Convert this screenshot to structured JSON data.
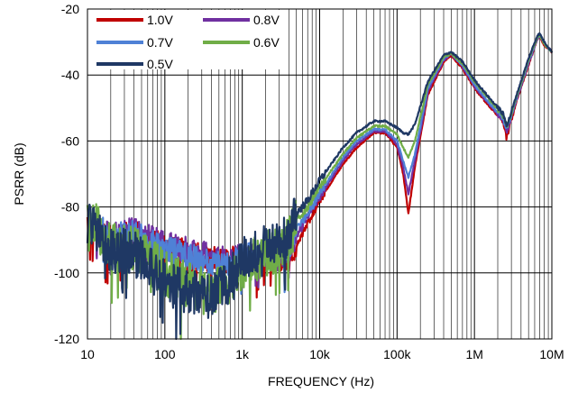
{
  "chart_data": {
    "type": "line",
    "title": "",
    "xlabel": "FREQUENCY (Hz)",
    "ylabel": "PSRR (dB)",
    "xscale": "log",
    "xlim": [
      10,
      10000000
    ],
    "ylim": [
      -120,
      -20
    ],
    "grid": true,
    "legend_position": "top-left",
    "x_tick_values": [
      10,
      100,
      1000,
      10000,
      100000,
      1000000,
      10000000
    ],
    "x_tick_labels": [
      "10",
      "100",
      "1k",
      "10k",
      "100k",
      "1M",
      "10M"
    ],
    "y_tick_values": [
      -20,
      -40,
      -60,
      -80,
      -100,
      -120
    ],
    "y_tick_labels": [
      "-20",
      "-40",
      "-60",
      "-80",
      "-100",
      "-120"
    ],
    "series": [
      {
        "name": "1.0V",
        "color": "#c00000",
        "x": [
          10,
          20,
          40,
          60,
          100,
          200,
          400,
          700,
          1000,
          2000,
          3000,
          4000,
          5000,
          7000,
          10000,
          20000,
          30000,
          50000,
          70000,
          100000,
          120000,
          140000,
          170000,
          250000,
          400000,
          500000,
          700000,
          1000000,
          1500000,
          2300000,
          2600000,
          2700000,
          2800000,
          3500000,
          5000000,
          6500000,
          7000000,
          8000000,
          10000000
        ],
        "y": [
          -85,
          -90,
          -88,
          -90,
          -92,
          -94,
          -96,
          -96,
          -95,
          -95,
          -96,
          -96,
          -92,
          -85,
          -78,
          -67,
          -62,
          -57.5,
          -57.5,
          -62,
          -70,
          -82,
          -68,
          -46,
          -36,
          -34,
          -38,
          -44,
          -49,
          -54,
          -59,
          -58,
          -56,
          -48,
          -37,
          -29,
          -28.5,
          -31,
          -33
        ]
      },
      {
        "name": "0.8V",
        "color": "#7030a0",
        "x": [
          10,
          20,
          40,
          60,
          100,
          200,
          400,
          700,
          1000,
          2000,
          3000,
          4000,
          5000,
          7000,
          10000,
          20000,
          30000,
          50000,
          70000,
          100000,
          120000,
          140000,
          170000,
          250000,
          400000,
          500000,
          700000,
          1000000,
          1500000,
          2300000,
          2600000,
          2700000,
          2800000,
          3500000,
          5000000,
          6500000,
          7000000,
          8000000,
          10000000
        ],
        "y": [
          -84,
          -89,
          -87,
          -89,
          -91,
          -93,
          -95,
          -96,
          -95,
          -95,
          -96,
          -94,
          -89,
          -83,
          -77,
          -66,
          -61,
          -57,
          -57,
          -61,
          -68,
          -76,
          -66,
          -45,
          -35.5,
          -33.5,
          -37.5,
          -43.5,
          -48.5,
          -53.5,
          -57,
          -56.5,
          -55,
          -47.5,
          -36.5,
          -29,
          -28,
          -30.5,
          -33
        ]
      },
      {
        "name": "0.7V",
        "color": "#4f81d6",
        "x": [
          10,
          20,
          40,
          60,
          100,
          200,
          400,
          700,
          1000,
          2000,
          3000,
          4000,
          5000,
          7000,
          10000,
          20000,
          30000,
          50000,
          70000,
          100000,
          120000,
          140000,
          170000,
          250000,
          400000,
          500000,
          700000,
          1000000,
          1500000,
          2300000,
          2600000,
          2700000,
          2800000,
          3500000,
          5000000,
          6500000,
          7000000,
          8000000,
          10000000
        ],
        "y": [
          -83,
          -89,
          -88,
          -90,
          -92,
          -95,
          -97,
          -97,
          -95,
          -94,
          -94,
          -92,
          -87,
          -82,
          -76,
          -65,
          -60,
          -56.5,
          -56.5,
          -60,
          -66,
          -71,
          -64,
          -44,
          -35,
          -33.5,
          -37,
          -43,
          -48,
          -53,
          -56,
          -55.5,
          -54.5,
          -47,
          -36,
          -28.5,
          -28,
          -30.5,
          -33
        ]
      },
      {
        "name": "0.6V",
        "color": "#70ad47",
        "x": [
          10,
          20,
          40,
          60,
          100,
          200,
          400,
          700,
          1000,
          2000,
          3000,
          4000,
          5000,
          7000,
          10000,
          20000,
          30000,
          50000,
          70000,
          100000,
          120000,
          140000,
          170000,
          250000,
          400000,
          500000,
          700000,
          1000000,
          1500000,
          2300000,
          2600000,
          2700000,
          2800000,
          3500000,
          5000000,
          6500000,
          7000000,
          8000000,
          10000000
        ],
        "y": [
          -82,
          -92,
          -92,
          -95,
          -100,
          -104,
          -106,
          -103,
          -98,
          -94,
          -93,
          -90,
          -84,
          -80,
          -74,
          -64,
          -59,
          -55.5,
          -55.5,
          -58,
          -62,
          -65,
          -60,
          -43,
          -34.5,
          -33.5,
          -36.5,
          -42,
          -47,
          -52,
          -55,
          -55,
          -54,
          -46.5,
          -35.5,
          -28.5,
          -28,
          -30.5,
          -33
        ]
      },
      {
        "name": "0.5V",
        "color": "#1f3864",
        "x": [
          10,
          20,
          40,
          60,
          100,
          200,
          400,
          700,
          1000,
          2000,
          3000,
          4000,
          5000,
          7000,
          10000,
          20000,
          30000,
          50000,
          70000,
          100000,
          120000,
          140000,
          170000,
          250000,
          400000,
          500000,
          700000,
          1000000,
          1500000,
          2300000,
          2600000,
          2700000,
          2800000,
          3500000,
          5000000,
          6500000,
          7000000,
          8000000,
          10000000
        ],
        "y": [
          -84,
          -93,
          -94,
          -98,
          -103,
          -106,
          -107,
          -102,
          -96,
          -92,
          -90,
          -88,
          -82,
          -78,
          -72,
          -62,
          -57.5,
          -54,
          -54,
          -56,
          -57.5,
          -58,
          -55,
          -42,
          -34,
          -33,
          -36,
          -41.5,
          -46.5,
          -51.5,
          -55,
          -54.5,
          -53.5,
          -46,
          -35,
          -28,
          -27.5,
          -30,
          -33
        ]
      }
    ]
  }
}
